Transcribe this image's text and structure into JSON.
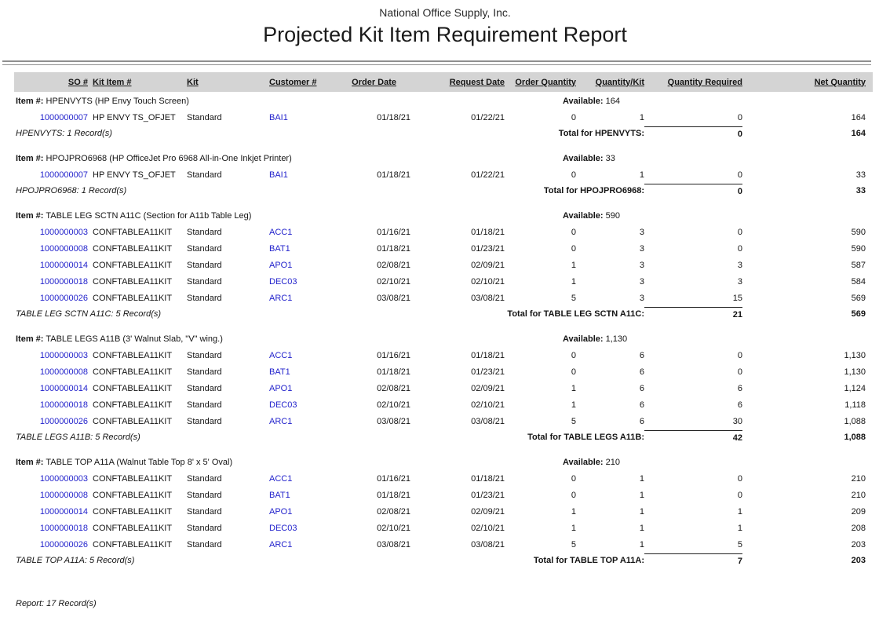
{
  "report": {
    "company": "National Office Supply, Inc.",
    "title": "Projected Kit Item Requirement Report",
    "footer": "Report: 17 Record(s)"
  },
  "labels": {
    "item_prefix": "Item #:",
    "available_prefix": "Available:"
  },
  "colors": {
    "link_blue": "#2323cc",
    "header_band_gray": "#d4d4d4",
    "rule_gray": "#8f8f8f"
  },
  "columns": [
    {
      "key": "so",
      "label": "SO #"
    },
    {
      "key": "kit_item",
      "label": "Kit Item #"
    },
    {
      "key": "kit",
      "label": "Kit"
    },
    {
      "key": "customer",
      "label": "Customer #"
    },
    {
      "key": "order_date",
      "label": "Order Date"
    },
    {
      "key": "request_date",
      "label": "Request Date"
    },
    {
      "key": "order_qty",
      "label": "Order Quantity"
    },
    {
      "key": "qty_per_kit",
      "label": "Quantity/Kit"
    },
    {
      "key": "qty_required",
      "label": "Quantity Required"
    },
    {
      "key": "net_qty",
      "label": "Net Quantity"
    }
  ],
  "groups": [
    {
      "item": "HPENVYTS (HP Envy Touch Screen)",
      "available": "164",
      "rows": [
        {
          "so": "1000000007",
          "kit_item": "HP ENVY TS_OFJET",
          "kit": "Standard",
          "customer": "BAI1",
          "order_date": "01/18/21",
          "request_date": "01/22/21",
          "order_qty": "0",
          "qty_per_kit": "1",
          "qty_required": "0",
          "net_qty": "164"
        }
      ],
      "footer": "HPENVYTS: 1 Record(s)",
      "total_label": "Total for HPENVYTS:",
      "total_qty_required": "0",
      "total_net_qty": "164"
    },
    {
      "item": "HPOJPRO6968 (HP OfficeJet Pro 6968 All-in-One Inkjet Printer)",
      "available": "33",
      "rows": [
        {
          "so": "1000000007",
          "kit_item": "HP ENVY TS_OFJET",
          "kit": "Standard",
          "customer": "BAI1",
          "order_date": "01/18/21",
          "request_date": "01/22/21",
          "order_qty": "0",
          "qty_per_kit": "1",
          "qty_required": "0",
          "net_qty": "33"
        }
      ],
      "footer": "HPOJPRO6968: 1 Record(s)",
      "total_label": "Total for HPOJPRO6968:",
      "total_qty_required": "0",
      "total_net_qty": "33"
    },
    {
      "item": "TABLE LEG SCTN A11C (Section for A11b Table Leg)",
      "available": "590",
      "rows": [
        {
          "so": "1000000003",
          "kit_item": "CONFTABLEA11KIT",
          "kit": "Standard",
          "customer": "ACC1",
          "order_date": "01/16/21",
          "request_date": "01/18/21",
          "order_qty": "0",
          "qty_per_kit": "3",
          "qty_required": "0",
          "net_qty": "590"
        },
        {
          "so": "1000000008",
          "kit_item": "CONFTABLEA11KIT",
          "kit": "Standard",
          "customer": "BAT1",
          "order_date": "01/18/21",
          "request_date": "01/23/21",
          "order_qty": "0",
          "qty_per_kit": "3",
          "qty_required": "0",
          "net_qty": "590"
        },
        {
          "so": "1000000014",
          "kit_item": "CONFTABLEA11KIT",
          "kit": "Standard",
          "customer": "APO1",
          "order_date": "02/08/21",
          "request_date": "02/09/21",
          "order_qty": "1",
          "qty_per_kit": "3",
          "qty_required": "3",
          "net_qty": "587"
        },
        {
          "so": "1000000018",
          "kit_item": "CONFTABLEA11KIT",
          "kit": "Standard",
          "customer": "DEC03",
          "order_date": "02/10/21",
          "request_date": "02/10/21",
          "order_qty": "1",
          "qty_per_kit": "3",
          "qty_required": "3",
          "net_qty": "584"
        },
        {
          "so": "1000000026",
          "kit_item": "CONFTABLEA11KIT",
          "kit": "Standard",
          "customer": "ARC1",
          "order_date": "03/08/21",
          "request_date": "03/08/21",
          "order_qty": "5",
          "qty_per_kit": "3",
          "qty_required": "15",
          "net_qty": "569"
        }
      ],
      "footer": "TABLE LEG SCTN A11C: 5 Record(s)",
      "total_label": "Total for TABLE LEG SCTN A11C:",
      "total_qty_required": "21",
      "total_net_qty": "569"
    },
    {
      "item": "TABLE LEGS A11B (3' Walnut Slab, \"V\" wing.)",
      "available": "1,130",
      "rows": [
        {
          "so": "1000000003",
          "kit_item": "CONFTABLEA11KIT",
          "kit": "Standard",
          "customer": "ACC1",
          "order_date": "01/16/21",
          "request_date": "01/18/21",
          "order_qty": "0",
          "qty_per_kit": "6",
          "qty_required": "0",
          "net_qty": "1,130"
        },
        {
          "so": "1000000008",
          "kit_item": "CONFTABLEA11KIT",
          "kit": "Standard",
          "customer": "BAT1",
          "order_date": "01/18/21",
          "request_date": "01/23/21",
          "order_qty": "0",
          "qty_per_kit": "6",
          "qty_required": "0",
          "net_qty": "1,130"
        },
        {
          "so": "1000000014",
          "kit_item": "CONFTABLEA11KIT",
          "kit": "Standard",
          "customer": "APO1",
          "order_date": "02/08/21",
          "request_date": "02/09/21",
          "order_qty": "1",
          "qty_per_kit": "6",
          "qty_required": "6",
          "net_qty": "1,124"
        },
        {
          "so": "1000000018",
          "kit_item": "CONFTABLEA11KIT",
          "kit": "Standard",
          "customer": "DEC03",
          "order_date": "02/10/21",
          "request_date": "02/10/21",
          "order_qty": "1",
          "qty_per_kit": "6",
          "qty_required": "6",
          "net_qty": "1,118"
        },
        {
          "so": "1000000026",
          "kit_item": "CONFTABLEA11KIT",
          "kit": "Standard",
          "customer": "ARC1",
          "order_date": "03/08/21",
          "request_date": "03/08/21",
          "order_qty": "5",
          "qty_per_kit": "6",
          "qty_required": "30",
          "net_qty": "1,088"
        }
      ],
      "footer": "TABLE LEGS A11B: 5 Record(s)",
      "total_label": "Total for TABLE LEGS A11B:",
      "total_qty_required": "42",
      "total_net_qty": "1,088"
    },
    {
      "item": "TABLE TOP A11A (Walnut Table Top 8' x 5' Oval)",
      "available": "210",
      "rows": [
        {
          "so": "1000000003",
          "kit_item": "CONFTABLEA11KIT",
          "kit": "Standard",
          "customer": "ACC1",
          "order_date": "01/16/21",
          "request_date": "01/18/21",
          "order_qty": "0",
          "qty_per_kit": "1",
          "qty_required": "0",
          "net_qty": "210"
        },
        {
          "so": "1000000008",
          "kit_item": "CONFTABLEA11KIT",
          "kit": "Standard",
          "customer": "BAT1",
          "order_date": "01/18/21",
          "request_date": "01/23/21",
          "order_qty": "0",
          "qty_per_kit": "1",
          "qty_required": "0",
          "net_qty": "210"
        },
        {
          "so": "1000000014",
          "kit_item": "CONFTABLEA11KIT",
          "kit": "Standard",
          "customer": "APO1",
          "order_date": "02/08/21",
          "request_date": "02/09/21",
          "order_qty": "1",
          "qty_per_kit": "1",
          "qty_required": "1",
          "net_qty": "209"
        },
        {
          "so": "1000000018",
          "kit_item": "CONFTABLEA11KIT",
          "kit": "Standard",
          "customer": "DEC03",
          "order_date": "02/10/21",
          "request_date": "02/10/21",
          "order_qty": "1",
          "qty_per_kit": "1",
          "qty_required": "1",
          "net_qty": "208"
        },
        {
          "so": "1000000026",
          "kit_item": "CONFTABLEA11KIT",
          "kit": "Standard",
          "customer": "ARC1",
          "order_date": "03/08/21",
          "request_date": "03/08/21",
          "order_qty": "5",
          "qty_per_kit": "1",
          "qty_required": "5",
          "net_qty": "203"
        }
      ],
      "footer": "TABLE TOP A11A: 5 Record(s)",
      "total_label": "Total for TABLE TOP A11A:",
      "total_qty_required": "7",
      "total_net_qty": "203"
    }
  ]
}
